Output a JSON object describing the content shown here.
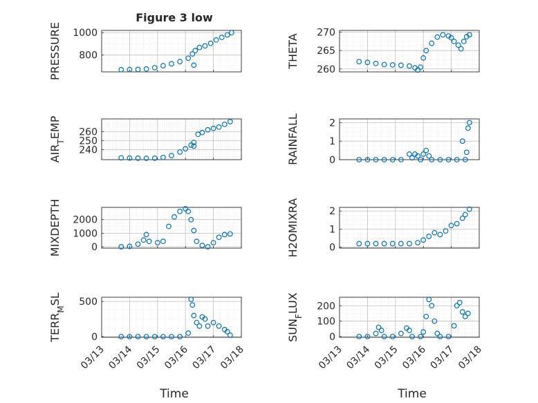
{
  "figure": {
    "title": "Figure 3 low",
    "xlabel": "Time",
    "x_ticks": [
      "03/13",
      "03/14",
      "03/15",
      "03/16",
      "03/17",
      "03/18"
    ]
  },
  "colors": {
    "marker": "#0072BD",
    "axes": "#262626",
    "grid": "#bfbfbf",
    "minor_grid": "#dedede"
  },
  "chart_data": [
    {
      "type": "scatter",
      "panel": "top-left",
      "ylabel": "PRESSURE",
      "xlim": [
        13,
        18
      ],
      "ylim": [
        650,
        1020
      ],
      "y_ticks": [
        {
          "v": 800,
          "t": "800"
        },
        {
          "v": 1000,
          "t": "1000"
        }
      ],
      "points": [
        [
          13.7,
          670
        ],
        [
          14.0,
          671
        ],
        [
          14.3,
          672
        ],
        [
          14.6,
          676
        ],
        [
          14.9,
          688
        ],
        [
          15.2,
          705
        ],
        [
          15.5,
          722
        ],
        [
          15.8,
          742
        ],
        [
          16.1,
          772
        ],
        [
          16.25,
          810
        ],
        [
          16.35,
          840
        ],
        [
          16.3,
          710
        ],
        [
          16.5,
          868
        ],
        [
          16.7,
          882
        ],
        [
          16.9,
          905
        ],
        [
          17.1,
          935
        ],
        [
          17.3,
          958
        ],
        [
          17.5,
          980
        ],
        [
          17.65,
          1000
        ]
      ]
    },
    {
      "type": "scatter",
      "panel": "top-right",
      "ylabel": "THETA",
      "xlim": [
        13,
        18
      ],
      "ylim": [
        259.2,
        270.5
      ],
      "y_ticks": [
        {
          "v": 260,
          "t": "260"
        },
        {
          "v": 265,
          "t": "265"
        },
        {
          "v": 270,
          "t": "270"
        }
      ],
      "points": [
        [
          13.7,
          262
        ],
        [
          14.0,
          261.8
        ],
        [
          14.3,
          261.5
        ],
        [
          14.6,
          261.2
        ],
        [
          14.9,
          261.1
        ],
        [
          15.2,
          261.0
        ],
        [
          15.5,
          260.8
        ],
        [
          15.7,
          260.3
        ],
        [
          15.8,
          259.7
        ],
        [
          15.9,
          260.5
        ],
        [
          16.0,
          263
        ],
        [
          16.1,
          265
        ],
        [
          16.3,
          267
        ],
        [
          16.5,
          268.7
        ],
        [
          16.7,
          269.3
        ],
        [
          16.9,
          269.0
        ],
        [
          17.0,
          268.5
        ],
        [
          17.1,
          267.5
        ],
        [
          17.25,
          266.5
        ],
        [
          17.35,
          265.5
        ],
        [
          17.45,
          267.5
        ],
        [
          17.55,
          268.8
        ],
        [
          17.65,
          269.3
        ]
      ]
    },
    {
      "type": "scatter",
      "panel": "row2-left",
      "ylabel": "AIR_TEMP",
      "xlim": [
        13,
        18
      ],
      "ylim": [
        229,
        274
      ],
      "y_ticks": [
        {
          "v": 240,
          "t": "240"
        },
        {
          "v": 250,
          "t": "250"
        },
        {
          "v": 260,
          "t": "260"
        }
      ],
      "points": [
        [
          13.7,
          231
        ],
        [
          14.0,
          230.8
        ],
        [
          14.3,
          230.6
        ],
        [
          14.6,
          230.5
        ],
        [
          14.9,
          230.6
        ],
        [
          15.2,
          231.5
        ],
        [
          15.5,
          233.5
        ],
        [
          15.8,
          237.5
        ],
        [
          16.0,
          241
        ],
        [
          16.2,
          245
        ],
        [
          16.3,
          248
        ],
        [
          16.3,
          244
        ],
        [
          16.45,
          257
        ],
        [
          16.6,
          259
        ],
        [
          16.8,
          262
        ],
        [
          17.0,
          263.5
        ],
        [
          17.2,
          265
        ],
        [
          17.4,
          268
        ],
        [
          17.6,
          271
        ]
      ]
    },
    {
      "type": "scatter",
      "panel": "row2-right",
      "ylabel": "RAINFALL",
      "xlim": [
        13,
        18
      ],
      "ylim": [
        0,
        2.2
      ],
      "y_ticks": [
        {
          "v": 0,
          "t": "0"
        },
        {
          "v": 1,
          "t": "1"
        },
        {
          "v": 2,
          "t": "2"
        }
      ],
      "points": [
        [
          13.7,
          0
        ],
        [
          14.0,
          0
        ],
        [
          14.3,
          0
        ],
        [
          14.6,
          0
        ],
        [
          14.9,
          0
        ],
        [
          15.2,
          0
        ],
        [
          15.5,
          0.3
        ],
        [
          15.6,
          0.1
        ],
        [
          15.7,
          0.3
        ],
        [
          15.8,
          0.2
        ],
        [
          15.9,
          0
        ],
        [
          16.0,
          0.3
        ],
        [
          16.1,
          0.5
        ],
        [
          16.2,
          0.2
        ],
        [
          16.3,
          0
        ],
        [
          16.6,
          0
        ],
        [
          16.9,
          0
        ],
        [
          17.2,
          0
        ],
        [
          17.4,
          1.0
        ],
        [
          17.5,
          0
        ],
        [
          17.55,
          0.4
        ],
        [
          17.6,
          1.7
        ],
        [
          17.65,
          2.0
        ]
      ]
    },
    {
      "type": "scatter",
      "panel": "row3-left",
      "ylabel": "MIXDEPTH",
      "xlim": [
        13,
        18
      ],
      "ylim": [
        -100,
        2900
      ],
      "y_ticks": [
        {
          "v": 0,
          "t": "0"
        },
        {
          "v": 1000,
          "t": "1000"
        },
        {
          "v": 2000,
          "t": "2000"
        }
      ],
      "points": [
        [
          13.7,
          0
        ],
        [
          14.0,
          30
        ],
        [
          14.3,
          200
        ],
        [
          14.5,
          500
        ],
        [
          14.6,
          900
        ],
        [
          14.7,
          400
        ],
        [
          15.0,
          300
        ],
        [
          15.2,
          400
        ],
        [
          15.4,
          1500
        ],
        [
          15.6,
          2200
        ],
        [
          15.8,
          2600
        ],
        [
          16.0,
          2800
        ],
        [
          16.1,
          2600
        ],
        [
          16.2,
          2000
        ],
        [
          16.3,
          1200
        ],
        [
          16.4,
          400
        ],
        [
          16.6,
          100
        ],
        [
          16.8,
          0
        ],
        [
          17.0,
          300
        ],
        [
          17.2,
          700
        ],
        [
          17.4,
          900
        ],
        [
          17.6,
          950
        ]
      ]
    },
    {
      "type": "scatter",
      "panel": "row3-right",
      "ylabel": "H2OMIXRA",
      "xlim": [
        13,
        18
      ],
      "ylim": [
        -0.05,
        2.2
      ],
      "y_ticks": [
        {
          "v": 0,
          "t": "0"
        },
        {
          "v": 1,
          "t": "1"
        },
        {
          "v": 2,
          "t": "2"
        }
      ],
      "points": [
        [
          13.7,
          0.2
        ],
        [
          14.0,
          0.2
        ],
        [
          14.3,
          0.2
        ],
        [
          14.6,
          0.2
        ],
        [
          14.9,
          0.2
        ],
        [
          15.2,
          0.2
        ],
        [
          15.5,
          0.2
        ],
        [
          15.8,
          0.25
        ],
        [
          16.0,
          0.4
        ],
        [
          16.2,
          0.6
        ],
        [
          16.4,
          0.8
        ],
        [
          16.6,
          0.7
        ],
        [
          16.8,
          0.9
        ],
        [
          17.0,
          1.2
        ],
        [
          17.2,
          1.3
        ],
        [
          17.4,
          1.6
        ],
        [
          17.5,
          1.8
        ],
        [
          17.65,
          2.1
        ]
      ]
    },
    {
      "type": "scatter",
      "panel": "bottom-left",
      "ylabel": "TERR_MSL",
      "xlim": [
        13,
        18
      ],
      "ylim": [
        -10,
        560
      ],
      "y_ticks": [
        {
          "v": 0,
          "t": "0"
        },
        {
          "v": 500,
          "t": "500"
        }
      ],
      "points": [
        [
          13.7,
          0
        ],
        [
          14.0,
          0
        ],
        [
          14.3,
          0
        ],
        [
          14.6,
          0
        ],
        [
          14.9,
          0
        ],
        [
          15.2,
          0
        ],
        [
          15.5,
          0
        ],
        [
          15.8,
          0
        ],
        [
          16.1,
          50
        ],
        [
          16.2,
          530
        ],
        [
          16.25,
          450
        ],
        [
          16.3,
          300
        ],
        [
          16.4,
          200
        ],
        [
          16.5,
          150
        ],
        [
          16.6,
          280
        ],
        [
          16.7,
          250
        ],
        [
          16.8,
          150
        ],
        [
          17.0,
          200
        ],
        [
          17.2,
          150
        ],
        [
          17.4,
          100
        ],
        [
          17.5,
          70
        ],
        [
          17.6,
          20
        ]
      ]
    },
    {
      "type": "scatter",
      "panel": "bottom-right",
      "ylabel": "SUN_FLUX",
      "xlim": [
        13,
        18
      ],
      "ylim": [
        -5,
        255
      ],
      "y_ticks": [
        {
          "v": 0,
          "t": "0"
        },
        {
          "v": 100,
          "t": "100"
        },
        {
          "v": 200,
          "t": "200"
        }
      ],
      "points": [
        [
          13.7,
          0
        ],
        [
          14.0,
          0
        ],
        [
          14.3,
          20
        ],
        [
          14.4,
          60
        ],
        [
          14.5,
          40
        ],
        [
          14.6,
          0
        ],
        [
          14.9,
          0
        ],
        [
          15.2,
          20
        ],
        [
          15.4,
          55
        ],
        [
          15.5,
          40
        ],
        [
          15.6,
          0
        ],
        [
          15.9,
          0
        ],
        [
          16.0,
          30
        ],
        [
          16.1,
          130
        ],
        [
          16.2,
          240
        ],
        [
          16.3,
          200
        ],
        [
          16.4,
          100
        ],
        [
          16.5,
          20
        ],
        [
          16.6,
          0
        ],
        [
          16.9,
          0
        ],
        [
          17.1,
          70
        ],
        [
          17.2,
          200
        ],
        [
          17.3,
          220
        ],
        [
          17.4,
          160
        ],
        [
          17.5,
          130
        ],
        [
          17.6,
          150
        ]
      ]
    }
  ]
}
